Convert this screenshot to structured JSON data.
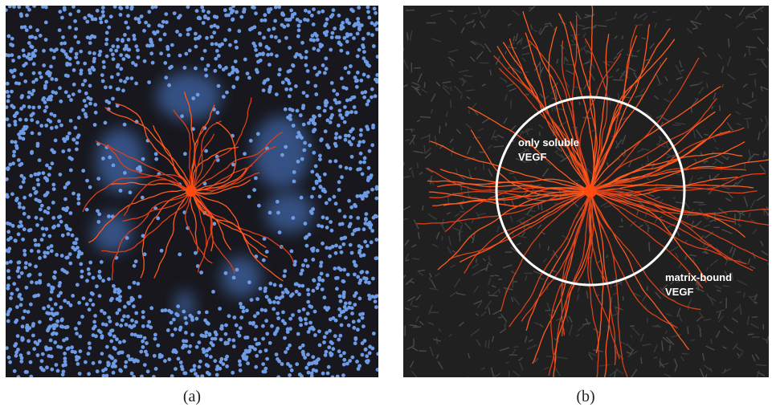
{
  "panels": [
    {
      "caption": "(a)"
    },
    {
      "caption": "(b)",
      "annotations": [
        {
          "lines": [
            "only soluble",
            "VEGF"
          ]
        },
        {
          "lines": [
            "matrix-bound",
            "VEGF"
          ]
        }
      ]
    }
  ]
}
